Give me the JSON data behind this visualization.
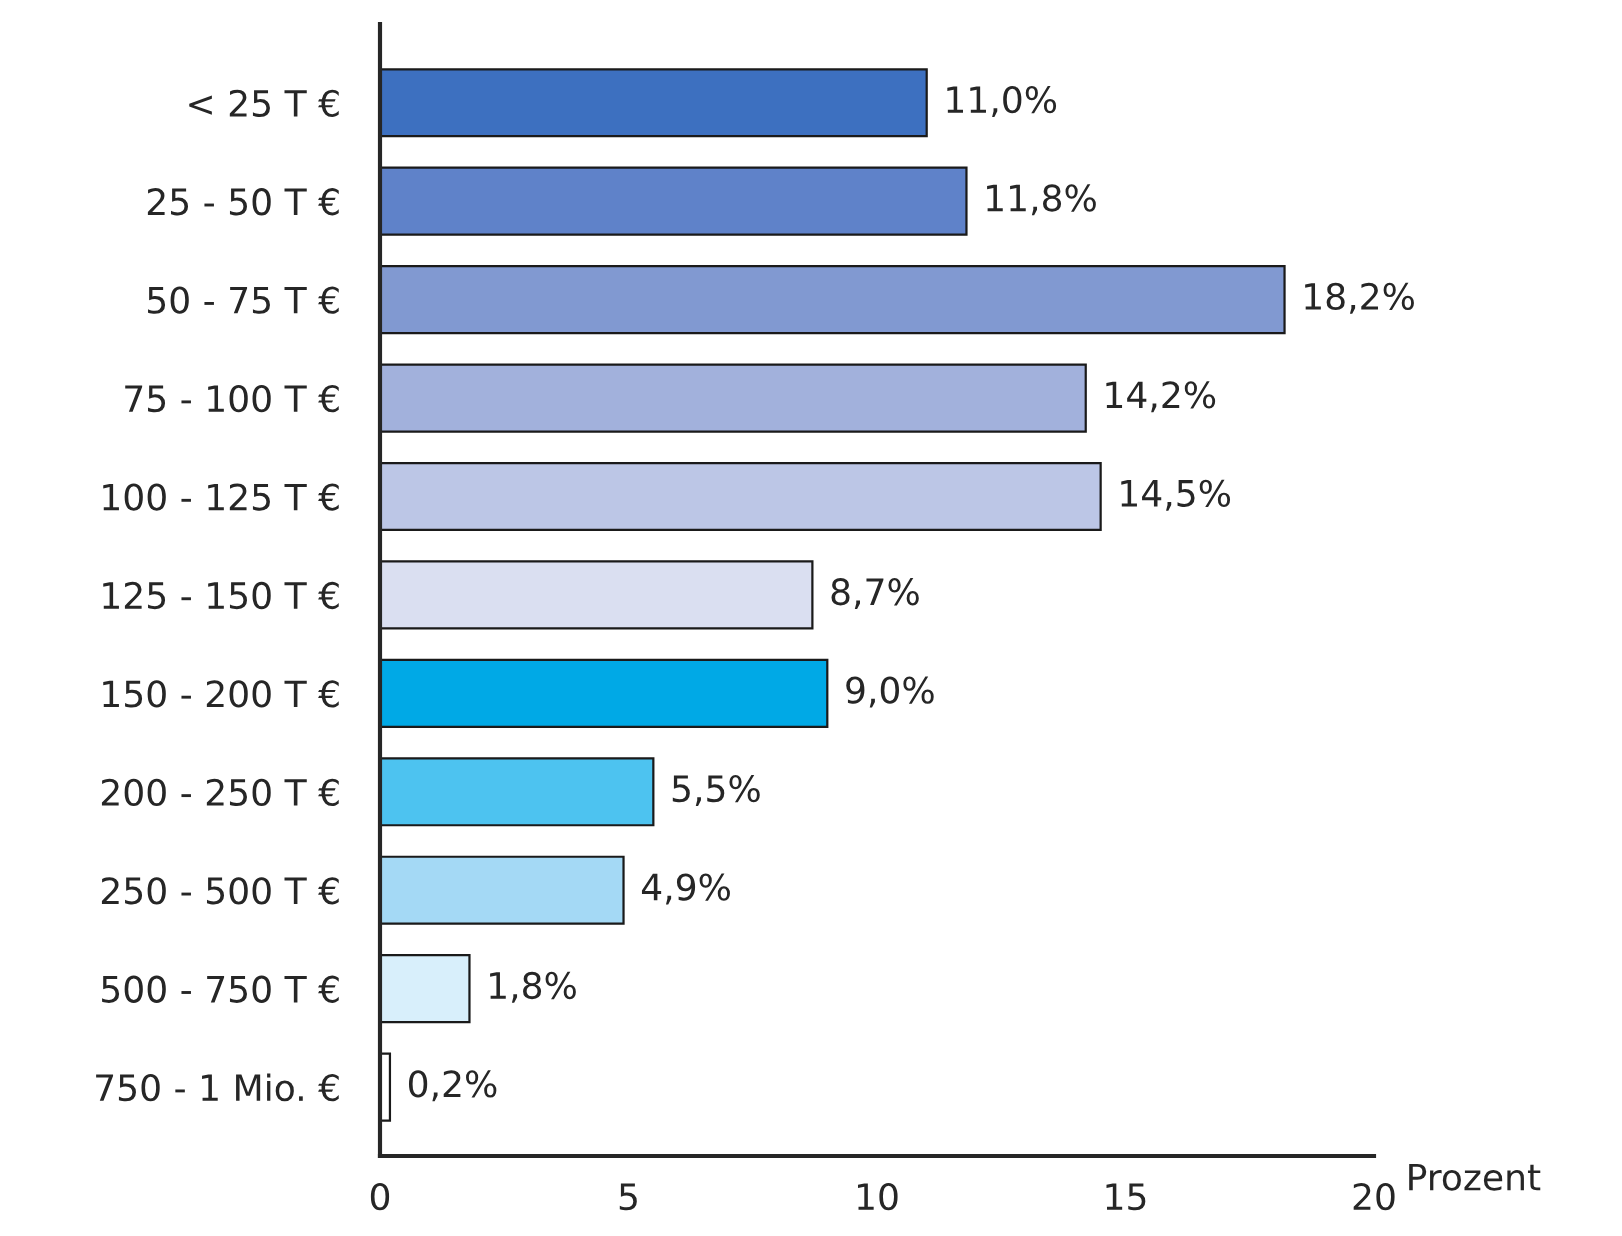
{
  "chart_data": {
    "type": "bar",
    "orientation": "horizontal",
    "categories": [
      "< 25 T €",
      "25 - 50 T €",
      "50 - 75 T €",
      "75 - 100 T €",
      "100 - 125 T €",
      "125 - 150 T €",
      "150 - 200 T €",
      "200 - 250 T €",
      "250 - 500 T €",
      "500 - 750 T €",
      "750 - 1 Mio. €"
    ],
    "values": [
      11.0,
      11.8,
      18.2,
      14.2,
      14.5,
      8.7,
      9.0,
      5.5,
      4.9,
      1.8,
      0.2
    ],
    "value_labels": [
      "11,0%",
      "11,8%",
      "18,2%",
      "14,2%",
      "14,5%",
      "8,7%",
      "9,0%",
      "5,5%",
      "4,9%",
      "1,8%",
      "0,2%"
    ],
    "colors": [
      "#3d70c0",
      "#5f82c9",
      "#8199d1",
      "#a2b1dc",
      "#bcc6e6",
      "#dadff1",
      "#00a9e6",
      "#4dc3f0",
      "#a4d9f5",
      "#d8effb",
      "#ffffff"
    ],
    "xlabel": "Prozent",
    "xlim": [
      0,
      20
    ],
    "xticks": [
      0,
      5,
      10,
      15,
      20
    ]
  }
}
